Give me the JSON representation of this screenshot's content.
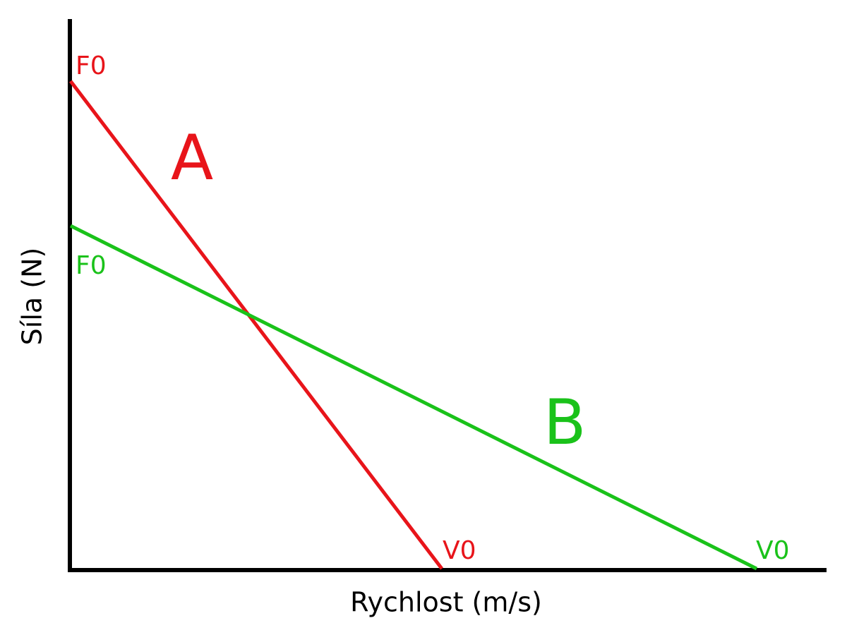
{
  "axes": {
    "x_label": "Rychlost (m/s)",
    "y_label": "Síla (N)"
  },
  "curves": [
    {
      "name": "A",
      "f0_label": "F0",
      "v0_label": "V0"
    },
    {
      "name": "B",
      "f0_label": "F0",
      "v0_label": "V0"
    }
  ]
}
